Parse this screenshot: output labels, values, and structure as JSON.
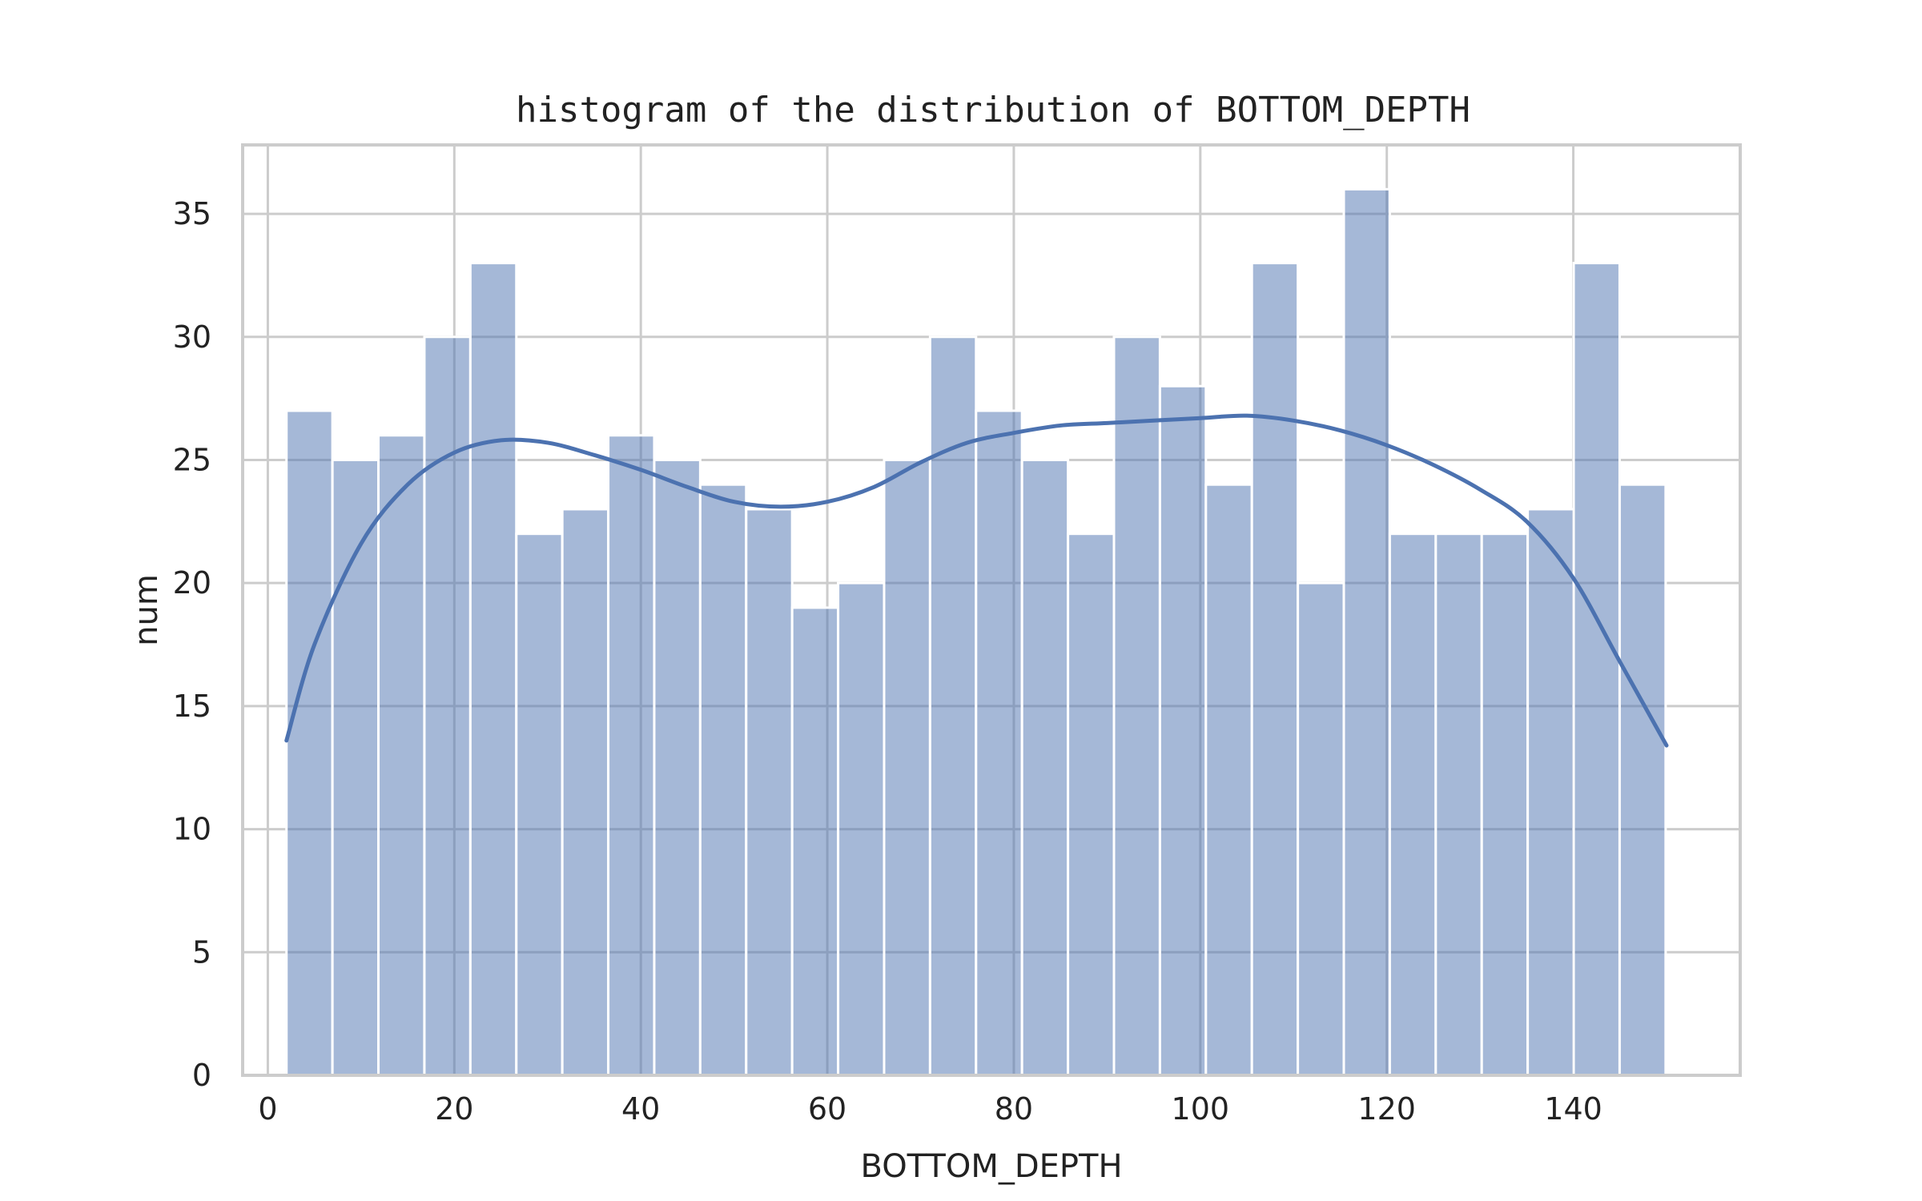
{
  "chart_data": {
    "type": "bar",
    "title": "histogram of the distribution of BOTTOM_DEPTH",
    "xlabel": "BOTTOM_DEPTH",
    "ylabel": "num",
    "xlim": [
      -2.7,
      157.9
    ],
    "ylim": [
      0,
      37.8
    ],
    "xticks": [
      0,
      20,
      40,
      60,
      80,
      100,
      120,
      140
    ],
    "yticks": [
      0,
      5,
      10,
      15,
      20,
      25,
      30,
      35
    ],
    "grid": true,
    "legend": "none",
    "bar_color": "#4c72b0",
    "bins": {
      "start": 2,
      "width": 4.93,
      "counts": [
        27,
        25,
        26,
        30,
        33,
        22,
        23,
        26,
        25,
        24,
        23,
        19,
        20,
        25,
        30,
        27,
        25,
        22,
        30,
        28,
        24,
        33,
        20,
        36,
        22,
        22,
        22,
        23,
        33,
        24
      ]
    },
    "kde": {
      "x": [
        2,
        5,
        10,
        15,
        20,
        25,
        30,
        35,
        40,
        45,
        50,
        55,
        60,
        65,
        70,
        75,
        80,
        85,
        90,
        95,
        100,
        105,
        110,
        115,
        120,
        125,
        130,
        135,
        140,
        145,
        150
      ],
      "y": [
        13.6,
        17.5,
        21.6,
        24.0,
        25.3,
        25.8,
        25.7,
        25.2,
        24.6,
        23.9,
        23.3,
        23.1,
        23.3,
        23.9,
        24.9,
        25.7,
        26.1,
        26.4,
        26.5,
        26.6,
        26.7,
        26.8,
        26.6,
        26.2,
        25.6,
        24.8,
        23.8,
        22.5,
        20.2,
        16.8,
        13.4
      ]
    }
  }
}
